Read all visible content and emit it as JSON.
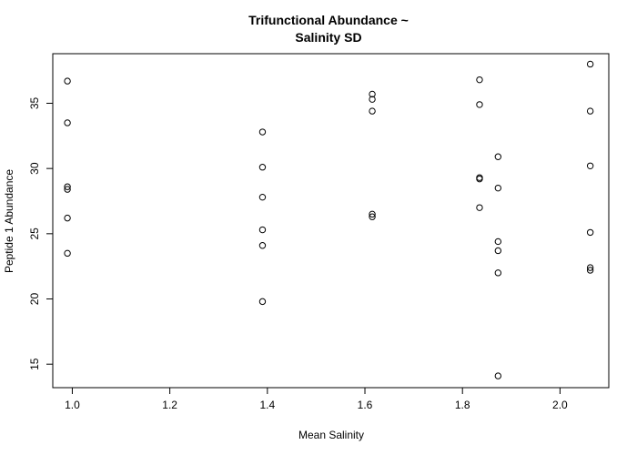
{
  "chart_data": {
    "type": "scatter",
    "title_lines": [
      "Trifunctional Abundance ~",
      "Salinity SD"
    ],
    "xlabel": "Mean Salinity",
    "ylabel": "Peptide 1 Abundance",
    "xlim": [
      0.96,
      2.1
    ],
    "ylim": [
      13.2,
      38.8
    ],
    "xticks": [
      1.0,
      1.2,
      1.4,
      1.6,
      1.8,
      2.0
    ],
    "xtick_labels": [
      "1.0",
      "1.2",
      "1.4",
      "1.6",
      "1.8",
      "2.0"
    ],
    "yticks": [
      15,
      20,
      25,
      30,
      35
    ],
    "ytick_labels": [
      "15",
      "20",
      "25",
      "30",
      "35"
    ],
    "grid": false,
    "points": [
      {
        "x": 0.99,
        "y": 36.7
      },
      {
        "x": 0.99,
        "y": 33.5
      },
      {
        "x": 0.99,
        "y": 28.6
      },
      {
        "x": 0.99,
        "y": 28.4
      },
      {
        "x": 0.99,
        "y": 26.2
      },
      {
        "x": 0.99,
        "y": 23.5
      },
      {
        "x": 1.39,
        "y": 32.8
      },
      {
        "x": 1.39,
        "y": 30.1
      },
      {
        "x": 1.39,
        "y": 27.8
      },
      {
        "x": 1.39,
        "y": 25.3
      },
      {
        "x": 1.39,
        "y": 24.1
      },
      {
        "x": 1.39,
        "y": 19.8
      },
      {
        "x": 1.615,
        "y": 35.7
      },
      {
        "x": 1.615,
        "y": 35.3
      },
      {
        "x": 1.615,
        "y": 34.4
      },
      {
        "x": 1.615,
        "y": 26.5
      },
      {
        "x": 1.615,
        "y": 26.3
      },
      {
        "x": 1.835,
        "y": 36.8
      },
      {
        "x": 1.835,
        "y": 34.9
      },
      {
        "x": 1.835,
        "y": 29.3
      },
      {
        "x": 1.835,
        "y": 29.2
      },
      {
        "x": 1.835,
        "y": 27.0
      },
      {
        "x": 1.873,
        "y": 30.9
      },
      {
        "x": 1.873,
        "y": 28.5
      },
      {
        "x": 1.873,
        "y": 24.4
      },
      {
        "x": 1.873,
        "y": 23.7
      },
      {
        "x": 1.873,
        "y": 22.0
      },
      {
        "x": 1.873,
        "y": 14.1
      },
      {
        "x": 2.062,
        "y": 38.0
      },
      {
        "x": 2.062,
        "y": 34.4
      },
      {
        "x": 2.062,
        "y": 30.2
      },
      {
        "x": 2.062,
        "y": 25.1
      },
      {
        "x": 2.062,
        "y": 22.4
      },
      {
        "x": 2.062,
        "y": 22.2
      }
    ]
  }
}
